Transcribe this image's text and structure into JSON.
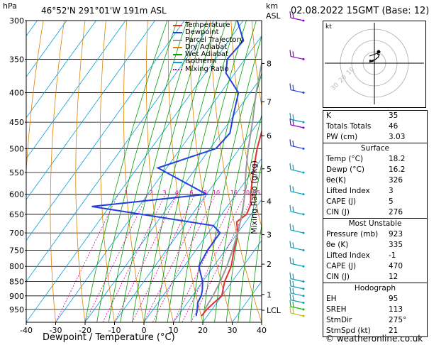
{
  "header": {
    "location": "46°52'N  291°01'W  191m  ASL",
    "datetime": "02.08.2022  15GMT  (Base: 12)",
    "left_unit": "hPa",
    "right_unit_1": "km",
    "right_unit_2": "ASL"
  },
  "chart_data": {
    "type": "line",
    "xlabel": "Dewpoint / Temperature (°C)",
    "right_label": "Mixing Ratio (g/kg)",
    "xlim": [
      -40,
      40
    ],
    "ylim_hpa": [
      1000,
      300
    ],
    "x_ticks": [
      -40,
      -30,
      -20,
      -10,
      0,
      10,
      20,
      30,
      40
    ],
    "pressure_ticks": [
      300,
      350,
      400,
      450,
      500,
      550,
      600,
      650,
      700,
      750,
      800,
      850,
      900,
      950
    ],
    "height_ticks": [
      {
        "label": "8",
        "p": 356
      },
      {
        "label": "7",
        "p": 415
      },
      {
        "label": "6",
        "p": 475
      },
      {
        "label": "5",
        "p": 542
      },
      {
        "label": "4",
        "p": 617
      },
      {
        "label": "3",
        "p": 705
      },
      {
        "label": "2",
        "p": 793
      },
      {
        "label": "1",
        "p": 895
      },
      {
        "label": "LCL",
        "p": 953
      }
    ],
    "mixing_ratio_labels": [
      "1",
      "2",
      "3",
      "4",
      "6",
      "8",
      "10",
      "16",
      "20",
      "25"
    ],
    "mixing_ratio_values": [
      1,
      2,
      3,
      4,
      6,
      8,
      10,
      16,
      20,
      25
    ],
    "legend": [
      "Temperature",
      "Dewpoint",
      "Parcel Trajectory",
      "Dry Adiabat",
      "Wet Adiabat",
      "Isotherm",
      "Mixing Ratio"
    ],
    "legend_colors": [
      "#e03030",
      "#2040e0",
      "#999999",
      "#e08000",
      "#00a000",
      "#00a0e0",
      "#d000a0"
    ],
    "series": [
      {
        "name": "Temperature",
        "color": "#e03030",
        "points": [
          [
            300,
            -28
          ],
          [
            350,
            -20.5
          ],
          [
            400,
            -14
          ],
          [
            450,
            -8
          ],
          [
            500,
            -4
          ],
          [
            550,
            0.5
          ],
          [
            600,
            5
          ],
          [
            625,
            7.5
          ],
          [
            650,
            8.5
          ],
          [
            670,
            7
          ],
          [
            700,
            10
          ],
          [
            750,
            13
          ],
          [
            800,
            16
          ],
          [
            850,
            17.5
          ],
          [
            880,
            19
          ],
          [
            900,
            20
          ],
          [
            925,
            19
          ],
          [
            950,
            18.2
          ],
          [
            975,
            18
          ]
        ]
      },
      {
        "name": "Dewpoint",
        "color": "#2040e0",
        "points": [
          [
            300,
            -42
          ],
          [
            325,
            -35
          ],
          [
            350,
            -36
          ],
          [
            370,
            -33
          ],
          [
            400,
            -24
          ],
          [
            440,
            -20
          ],
          [
            470,
            -17
          ],
          [
            500,
            -18
          ],
          [
            540,
            -33
          ],
          [
            600,
            -10
          ],
          [
            630,
            -46
          ],
          [
            680,
            0
          ],
          [
            700,
            4
          ],
          [
            750,
            4
          ],
          [
            800,
            5
          ],
          [
            820,
            7
          ],
          [
            850,
            10
          ],
          [
            880,
            12
          ],
          [
            900,
            13
          ],
          [
            925,
            13.5
          ],
          [
            950,
            15
          ],
          [
            975,
            16.2
          ]
        ]
      },
      {
        "name": "Parcel Trajectory",
        "color": "#999999",
        "points": [
          [
            300,
            -30
          ],
          [
            350,
            -24
          ],
          [
            400,
            -18
          ],
          [
            450,
            -12
          ],
          [
            500,
            -7
          ],
          [
            550,
            -2
          ],
          [
            600,
            3
          ],
          [
            650,
            7
          ],
          [
            700,
            10
          ],
          [
            750,
            12.5
          ],
          [
            800,
            14.5
          ],
          [
            850,
            16
          ],
          [
            900,
            17
          ],
          [
            950,
            17.5
          ]
        ]
      }
    ],
    "wind_barbs": [
      {
        "p": 300,
        "color": "#9000c0"
      },
      {
        "p": 350,
        "color": "#9000c0"
      },
      {
        "p": 400,
        "color": "#2040e0"
      },
      {
        "p": 450,
        "color": "#00a0c0"
      },
      {
        "p": 460,
        "color": "#9000c0"
      },
      {
        "p": 500,
        "color": "#2040e0"
      },
      {
        "p": 550,
        "color": "#00a0c0"
      },
      {
        "p": 600,
        "color": "#00a0c0"
      },
      {
        "p": 650,
        "color": "#00a0c0"
      },
      {
        "p": 700,
        "color": "#00a0c0"
      },
      {
        "p": 750,
        "color": "#00a0c0"
      },
      {
        "p": 800,
        "color": "#00a0c0"
      },
      {
        "p": 850,
        "color": "#00a0c0"
      },
      {
        "p": 875,
        "color": "#00a0c0"
      },
      {
        "p": 900,
        "color": "#00a0c0"
      },
      {
        "p": 925,
        "color": "#00a0c0"
      },
      {
        "p": 950,
        "color": "#00c000"
      },
      {
        "p": 975,
        "color": "#c0c000"
      }
    ]
  },
  "hodograph": {
    "unit": "kt",
    "ring_labels": [
      "10",
      "20",
      "30"
    ]
  },
  "indices": {
    "rows": [
      [
        "K",
        "35"
      ],
      [
        "Totals Totals",
        "46"
      ],
      [
        "PW (cm)",
        "3.03"
      ]
    ]
  },
  "surface": {
    "title": "Surface",
    "rows": [
      [
        "Temp (°C)",
        "18.2"
      ],
      [
        "Dewp (°C)",
        "16.2"
      ],
      [
        "θe(K)",
        "326"
      ],
      [
        "Lifted Index",
        "3"
      ],
      [
        "CAPE (J)",
        "5"
      ],
      [
        "CIN (J)",
        "276"
      ]
    ]
  },
  "most_unstable": {
    "title": "Most Unstable",
    "rows": [
      [
        "Pressure (mb)",
        "923"
      ],
      [
        "θe (K)",
        "335"
      ],
      [
        "Lifted Index",
        "-1"
      ],
      [
        "CAPE (J)",
        "470"
      ],
      [
        "CIN (J)",
        "12"
      ]
    ]
  },
  "hodograph_table": {
    "title": "Hodograph",
    "rows": [
      [
        "EH",
        "95"
      ],
      [
        "SREH",
        "113"
      ],
      [
        "StmDir",
        "275°"
      ],
      [
        "StmSpd (kt)",
        "21"
      ]
    ]
  },
  "footer": "© weatheronline.co.uk"
}
